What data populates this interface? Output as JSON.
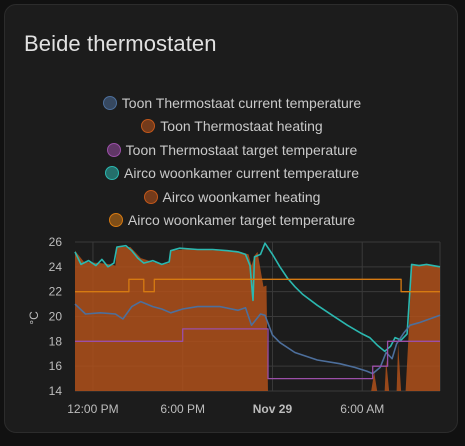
{
  "card": {
    "title": "Beide thermostaten"
  },
  "chart_data": {
    "type": "line",
    "title": "",
    "ylabel": "°C",
    "ylim": [
      14,
      26
    ],
    "y_ticks": [
      "14",
      "16",
      "18",
      "20",
      "22",
      "24",
      "26"
    ],
    "x_ticks": [
      {
        "label": "12:00 PM",
        "x": 0,
        "bold": false
      },
      {
        "label": "6:00 PM",
        "x": 6,
        "bold": false
      },
      {
        "label": "Nov 29",
        "x": 12,
        "bold": true
      },
      {
        "label": "6:00 AM",
        "x": 18,
        "bold": false
      }
    ],
    "xlim": [
      -1.2,
      23.2
    ],
    "legend": [
      {
        "name": "Toon Thermostaat current temperature",
        "color": "#4d6f9c"
      },
      {
        "name": "Toon Thermostaat heating",
        "color": "#c2571a"
      },
      {
        "name": "Toon Thermostaat target temperature",
        "color": "#9b4fa8"
      },
      {
        "name": "Airco woonkamer current temperature",
        "color": "#2bb8b0"
      },
      {
        "name": "Airco woonkamer heating",
        "color": "#c2571a"
      },
      {
        "name": "Airco woonkamer target temperature",
        "color": "#d67a12"
      }
    ],
    "heating_area": {
      "color": "#b5521a",
      "points": [
        [
          -1.2,
          25.3
        ],
        [
          -0.6,
          24.4
        ],
        [
          0.5,
          24.3
        ],
        [
          1.2,
          24.2
        ],
        [
          1.5,
          24.1
        ],
        [
          1.6,
          25.6
        ],
        [
          2.5,
          25.6
        ],
        [
          3.2,
          24.7
        ],
        [
          4,
          24.4
        ],
        [
          4.7,
          24.2
        ],
        [
          5.1,
          24.3
        ],
        [
          5.2,
          25.3
        ],
        [
          6,
          25.4
        ],
        [
          7.5,
          25.4
        ],
        [
          8.5,
          25.3
        ],
        [
          9.6,
          25.3
        ],
        [
          10.4,
          25
        ],
        [
          10.6,
          24.1
        ],
        [
          10.8,
          24.9
        ],
        [
          11,
          25.2
        ],
        [
          11.4,
          22.4
        ],
        [
          11.6,
          22.5
        ],
        [
          11.7,
          14
        ],
        [
          18.6,
          14
        ],
        [
          18.8,
          15.5
        ],
        [
          19,
          14
        ],
        [
          19.5,
          14
        ],
        [
          19.6,
          16.5
        ],
        [
          19.8,
          14
        ],
        [
          20.3,
          14
        ],
        [
          20.4,
          17.8
        ],
        [
          20.6,
          14
        ],
        [
          20.9,
          14
        ],
        [
          21.1,
          18.5
        ],
        [
          21.3,
          24.1
        ],
        [
          22,
          24.2
        ],
        [
          23.2,
          24
        ]
      ]
    },
    "series": [
      {
        "name": "Airco woonkamer current temperature",
        "color": "#2bb8b0",
        "width": 1.6,
        "values": [
          [
            -1.2,
            25.2
          ],
          [
            -0.8,
            24.2
          ],
          [
            -0.3,
            24.5
          ],
          [
            0.2,
            24.1
          ],
          [
            0.6,
            24.6
          ],
          [
            1,
            24
          ],
          [
            1.4,
            24.3
          ],
          [
            1.6,
            25.6
          ],
          [
            2.2,
            25.7
          ],
          [
            2.6,
            25.3
          ],
          [
            3,
            24.7
          ],
          [
            3.4,
            24.3
          ],
          [
            4,
            24.5
          ],
          [
            4.6,
            24.2
          ],
          [
            5.1,
            24.4
          ],
          [
            5.2,
            25.3
          ],
          [
            5.8,
            25.5
          ],
          [
            7,
            25.4
          ],
          [
            8,
            25.4
          ],
          [
            9,
            25.3
          ],
          [
            9.7,
            25.2
          ],
          [
            10.2,
            25
          ],
          [
            10.5,
            24.1
          ],
          [
            10.7,
            21.3
          ],
          [
            10.8,
            24.8
          ],
          [
            11.2,
            25
          ],
          [
            11.5,
            25.9
          ],
          [
            12,
            25
          ],
          [
            12.5,
            24
          ],
          [
            13,
            23.1
          ],
          [
            13.5,
            22.4
          ],
          [
            14,
            21.8
          ],
          [
            15,
            20.9
          ],
          [
            16,
            20.1
          ],
          [
            17,
            19.3
          ],
          [
            18,
            18.6
          ],
          [
            18.5,
            18.3
          ],
          [
            19,
            17.7
          ],
          [
            19.5,
            17.2
          ],
          [
            19.9,
            17.6
          ],
          [
            20.2,
            18.3
          ],
          [
            20.6,
            18.1
          ],
          [
            21,
            18.6
          ],
          [
            21.3,
            24.2
          ],
          [
            21.8,
            24.1
          ],
          [
            22.3,
            24.2
          ],
          [
            23.2,
            24
          ]
        ]
      },
      {
        "name": "Toon Thermostaat current temperature",
        "color": "#4d6f9c",
        "width": 1.6,
        "values": [
          [
            -1.2,
            21
          ],
          [
            -0.5,
            20.2
          ],
          [
            0.5,
            20.3
          ],
          [
            1.5,
            20.2
          ],
          [
            2,
            19.8
          ],
          [
            2.6,
            20.8
          ],
          [
            3.2,
            21.2
          ],
          [
            4,
            20.8
          ],
          [
            4.6,
            20.6
          ],
          [
            5.2,
            20.3
          ],
          [
            6,
            20.6
          ],
          [
            7,
            20.8
          ],
          [
            8.5,
            20.8
          ],
          [
            9.7,
            20.5
          ],
          [
            10.2,
            20.7
          ],
          [
            10.6,
            19.3
          ],
          [
            10.8,
            19.6
          ],
          [
            11.2,
            20.2
          ],
          [
            11.5,
            20.1
          ],
          [
            12,
            18.5
          ],
          [
            12.5,
            17.9
          ],
          [
            13.5,
            17.1
          ],
          [
            15,
            16.5
          ],
          [
            16.5,
            16.2
          ],
          [
            17.5,
            15.9
          ],
          [
            18.3,
            15.6
          ],
          [
            18.7,
            15.4
          ],
          [
            19.2,
            15.9
          ],
          [
            19.6,
            17.1
          ],
          [
            20,
            16.6
          ],
          [
            20.3,
            17.8
          ],
          [
            20.8,
            18.7
          ],
          [
            21.2,
            19.3
          ],
          [
            21.8,
            19.5
          ],
          [
            22.5,
            19.8
          ],
          [
            23.2,
            20.1
          ]
        ]
      },
      {
        "name": "Airco woonkamer target temperature",
        "color": "#d67a12",
        "width": 1.3,
        "step": true,
        "values": [
          [
            -1.2,
            22
          ],
          [
            2.4,
            22
          ],
          [
            2.4,
            23
          ],
          [
            3.4,
            23
          ],
          [
            3.4,
            22
          ],
          [
            4.1,
            22
          ],
          [
            4.1,
            23
          ],
          [
            11.7,
            23
          ],
          [
            11.7,
            23
          ],
          [
            20.6,
            23
          ],
          [
            20.6,
            22
          ],
          [
            23.2,
            22
          ]
        ]
      },
      {
        "name": "Toon Thermostaat target temperature",
        "color": "#9b4fa8",
        "width": 1.3,
        "step": true,
        "values": [
          [
            -1.2,
            18
          ],
          [
            6,
            18
          ],
          [
            6,
            19
          ],
          [
            11.7,
            19
          ],
          [
            11.7,
            15
          ],
          [
            18.7,
            15
          ],
          [
            18.7,
            16
          ],
          [
            19.7,
            16
          ],
          [
            19.7,
            18
          ],
          [
            23.2,
            18
          ]
        ]
      }
    ]
  }
}
